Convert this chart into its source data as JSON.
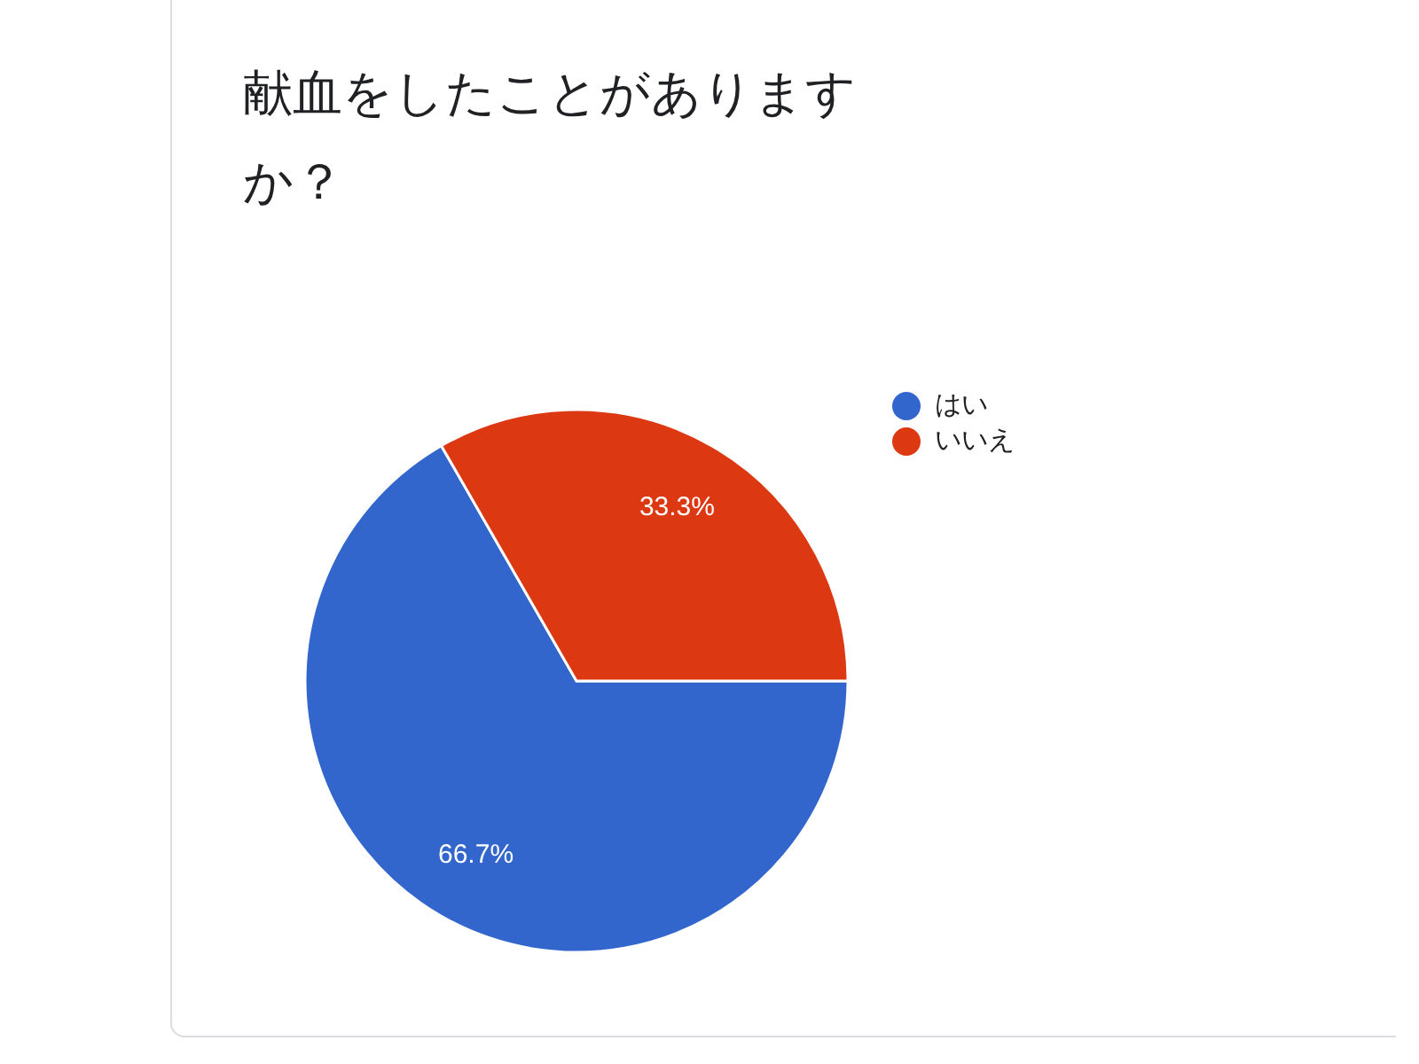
{
  "chart_data": {
    "type": "pie",
    "title": "献血をしたことがありますか？",
    "categories": [
      "はい",
      "いいえ"
    ],
    "values": [
      66.7,
      33.3
    ],
    "colors": [
      "#3366cc",
      "#dc3912"
    ],
    "value_labels": [
      "66.7%",
      "33.3%"
    ],
    "legend": "right"
  }
}
